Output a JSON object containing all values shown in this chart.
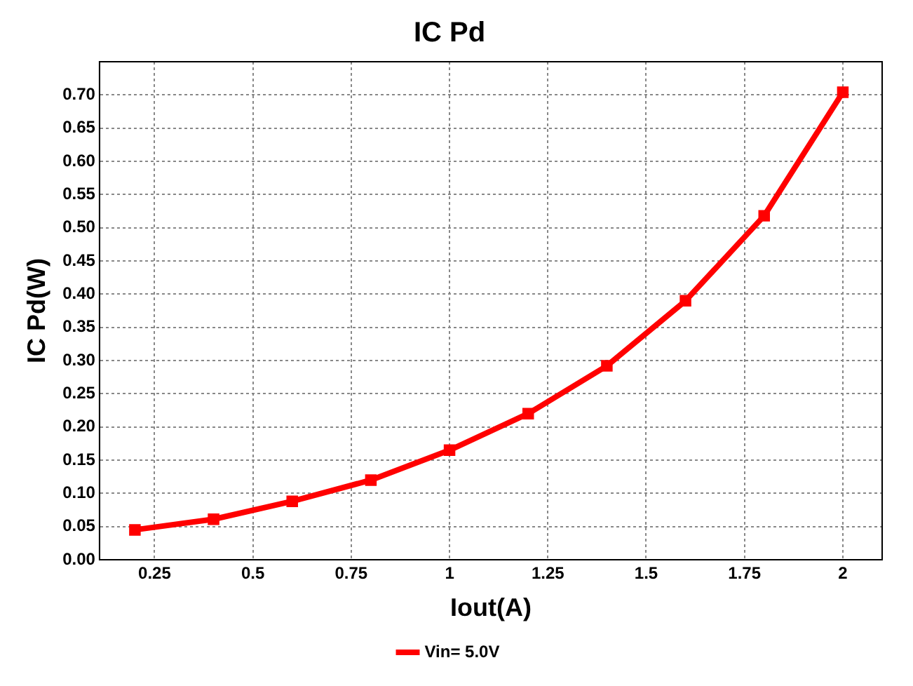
{
  "chart_data": {
    "type": "line",
    "title": "IC Pd",
    "xlabel": "Iout(A)",
    "ylabel": "IC Pd(W)",
    "x": [
      0.2,
      0.4,
      0.6,
      0.8,
      1.0,
      1.2,
      1.4,
      1.6,
      1.8,
      2.0
    ],
    "series": [
      {
        "name": "Vin= 5.0V",
        "color": "#ff0000",
        "values": [
          0.045,
          0.061,
          0.088,
          0.12,
          0.165,
          0.22,
          0.292,
          0.39,
          0.518,
          0.704
        ]
      }
    ],
    "xlim": [
      0.11,
      2.1
    ],
    "xticks": [
      0.25,
      0.5,
      0.75,
      1,
      1.25,
      1.5,
      1.75,
      2
    ],
    "ylim": [
      0,
      0.75
    ],
    "yticks": [
      {
        "value": 0,
        "label": "0.00"
      },
      {
        "value": 0.05,
        "label": "0.05"
      },
      {
        "value": 0.1,
        "label": "0.10"
      },
      {
        "value": 0.15,
        "label": "0.15"
      },
      {
        "value": 0.2,
        "label": "0.20"
      },
      {
        "value": 0.25,
        "label": "0.25"
      },
      {
        "value": 0.3,
        "label": "0.30"
      },
      {
        "value": 0.35,
        "label": "0.35"
      },
      {
        "value": 0.4,
        "label": "0.40"
      },
      {
        "value": 0.45,
        "label": "0.45"
      },
      {
        "value": 0.5,
        "label": "0.50"
      },
      {
        "value": 0.55,
        "label": "0.55"
      },
      {
        "value": 0.6,
        "label": "0.60"
      },
      {
        "value": 0.65,
        "label": "0.65"
      },
      {
        "value": 0.7,
        "label": "0.70"
      }
    ],
    "grid": true,
    "legend": "bottom",
    "marker": "square",
    "line_style": "solid"
  }
}
